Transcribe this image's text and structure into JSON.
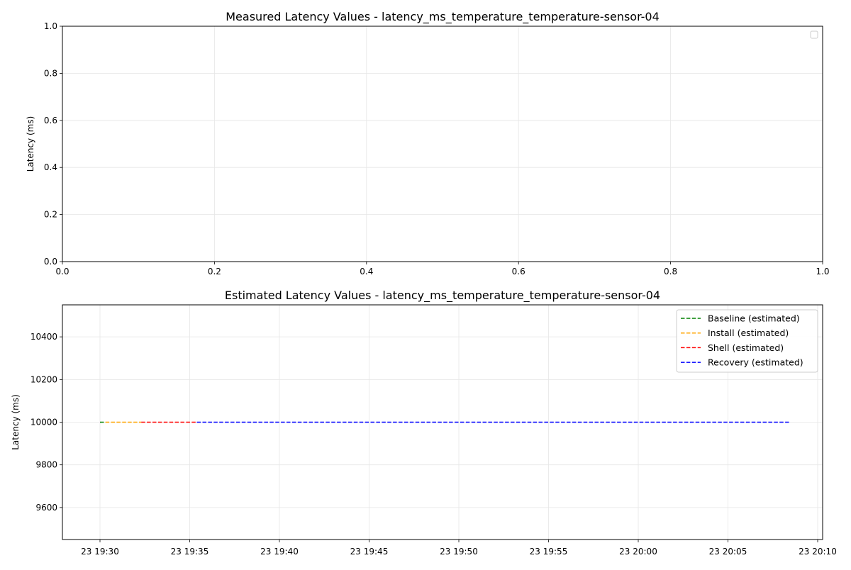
{
  "chart_data": [
    {
      "type": "line",
      "title": "Measured Latency Values - latency_ms_temperature_temperature-sensor-04",
      "xlabel": "",
      "ylabel": "Latency (ms)",
      "xlim": [
        0,
        1
      ],
      "ylim": [
        0,
        1
      ],
      "x_ticks": [
        "0.0",
        "0.2",
        "0.4",
        "0.6",
        "0.8",
        "1.0"
      ],
      "y_ticks": [
        "0.0",
        "0.2",
        "0.4",
        "0.6",
        "0.8",
        "1.0"
      ],
      "grid": true,
      "legend": "top-right (empty)",
      "series": []
    },
    {
      "type": "line",
      "title": "Estimated Latency Values - latency_ms_temperature_temperature-sensor-04",
      "xlabel": "",
      "ylabel": "Latency (ms)",
      "xlim": [
        "23 19:28",
        "23 20:10"
      ],
      "ylim": [
        9450,
        10550
      ],
      "x_ticks": [
        "23 19:30",
        "23 19:35",
        "23 19:40",
        "23 19:45",
        "23 19:50",
        "23 19:55",
        "23 20:00",
        "23 20:05",
        "23 20:10"
      ],
      "y_ticks": [
        "9600",
        "9800",
        "10000",
        "10200",
        "10400"
      ],
      "grid": true,
      "legend": "top-right",
      "series": [
        {
          "name": "Baseline (estimated)",
          "color": "#008000",
          "style": "dashed",
          "x": [
            "23 19:30",
            "23 19:30.3"
          ],
          "y": [
            10000,
            10000
          ]
        },
        {
          "name": "Install (estimated)",
          "color": "#ffa500",
          "style": "dashed",
          "x": [
            "23 19:30.3",
            "23 19:32.3"
          ],
          "y": [
            10000,
            10000
          ]
        },
        {
          "name": "Shell (estimated)",
          "color": "#ff0000",
          "style": "dashed",
          "x": [
            "23 19:32.3",
            "23 19:35.4"
          ],
          "y": [
            10000,
            10000
          ]
        },
        {
          "name": "Recovery (estimated)",
          "color": "#0000ff",
          "style": "dashed",
          "x": [
            "23 19:35.4",
            "23 20:08.4"
          ],
          "y": [
            10000,
            10000
          ]
        }
      ]
    }
  ]
}
